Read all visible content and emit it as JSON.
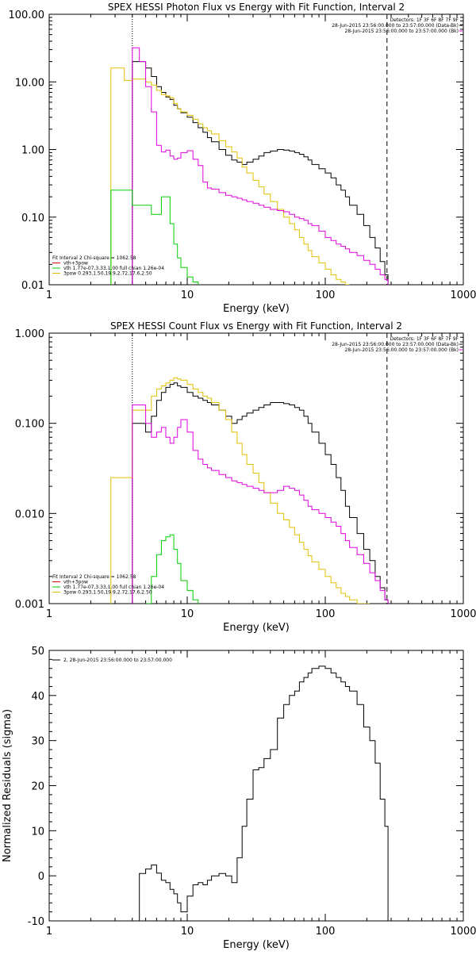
{
  "chart_data": [
    {
      "type": "line",
      "id": "photon",
      "title": "SPEX HESSI Photon Flux vs Energy with Fit Function, Interval 2",
      "xlabel": "Energy (keV)",
      "ylabel": "",
      "xscale": "log",
      "yscale": "log",
      "xlim": [
        1,
        1000
      ],
      "ylim": [
        0.01,
        100
      ],
      "x_ticks": [
        "1",
        "10",
        "100",
        "1000"
      ],
      "y_ticks": [
        "100.00",
        "10.00",
        "1.00",
        "0.10",
        "0.01"
      ],
      "vlines": [
        {
          "x": 4,
          "style": "dotted"
        },
        {
          "x": 280,
          "style": "dashed"
        }
      ],
      "header_right": [
        "Detectors: 1F 3F 6F 8F 7F 9F",
        "28-Jun-2015 23:56:00.000 to 23:57:00.000 (Data-Bk)",
        "28-Jun-2015 23:56:00.000 to 23:57:00.000 (Bk)"
      ],
      "legend": [
        {
          "text": "Fit Interval 2   Chi-square = 1062.58",
          "color": "#000000"
        },
        {
          "text": "vth+3pow",
          "color": "#e00000"
        },
        {
          "text": "vth 1.77e-07,3.33,1.00  full chian 1.26e-04",
          "color": "#00d000"
        },
        {
          "text": "3pow 0.293,1.50,19.9,2.72,17.6,2.50",
          "color": "#e0c000"
        }
      ],
      "series": [
        {
          "color": "#000000",
          "x": [
            4,
            4.5,
            5,
            5.5,
            6,
            6.5,
            7,
            7.5,
            8,
            8.5,
            9,
            10,
            11,
            12,
            13,
            14,
            15,
            17,
            19,
            21,
            23,
            25,
            27,
            30,
            33,
            36,
            40,
            45,
            50,
            55,
            60,
            65,
            70,
            75,
            80,
            90,
            100,
            110,
            120,
            130,
            140,
            150,
            170,
            190,
            210,
            230,
            250,
            270,
            285
          ],
          "y": [
            20,
            20,
            16,
            12,
            8.5,
            7,
            6,
            5.5,
            4.5,
            4,
            3.5,
            3.0,
            2.5,
            2.1,
            1.8,
            1.5,
            1.3,
            1.0,
            0.82,
            0.7,
            0.65,
            0.6,
            0.65,
            0.72,
            0.8,
            0.9,
            0.95,
            1.0,
            0.98,
            0.95,
            0.9,
            0.85,
            0.78,
            0.7,
            0.6,
            0.52,
            0.45,
            0.38,
            0.3,
            0.25,
            0.2,
            0.15,
            0.11,
            0.075,
            0.05,
            0.035,
            0.022,
            0.014,
            0.01
          ]
        },
        {
          "color": "#e0c000",
          "x": [
            2.8,
            3.5,
            4,
            4.5,
            5,
            5.5,
            6,
            6.5,
            7,
            7.5,
            8,
            8.5,
            9,
            10,
            11,
            12,
            13,
            14,
            15,
            17,
            19,
            21,
            23,
            25,
            27,
            30,
            33,
            36,
            40,
            45,
            50,
            55,
            60,
            65,
            70,
            75,
            80,
            90,
            100,
            110,
            120,
            130,
            140,
            150
          ],
          "y": [
            16,
            10.5,
            11,
            11,
            10,
            9,
            7.5,
            6.5,
            6.2,
            5.8,
            4.8,
            4,
            3.6,
            3.2,
            2.8,
            2.4,
            2.1,
            1.9,
            1.7,
            1.35,
            1.1,
            0.92,
            0.75,
            0.55,
            0.45,
            0.35,
            0.28,
            0.22,
            0.17,
            0.13,
            0.1,
            0.08,
            0.065,
            0.05,
            0.04,
            0.032,
            0.026,
            0.021,
            0.017,
            0.014,
            0.012,
            0.011,
            0.01,
            0.01
          ]
        },
        {
          "color": "#e000e0",
          "x": [
            4,
            4.5,
            5,
            5.5,
            6,
            6.5,
            7,
            7.5,
            8,
            8.5,
            9,
            10,
            11,
            12,
            13,
            14,
            15,
            17,
            19,
            21,
            23,
            25,
            27,
            30,
            33,
            36,
            40,
            45,
            50,
            55,
            60,
            65,
            70,
            75,
            80,
            90,
            100,
            110,
            120,
            130,
            140,
            150,
            170,
            190,
            210,
            230,
            250,
            270,
            285
          ],
          "y": [
            32,
            20,
            8.5,
            3.6,
            1.15,
            0.92,
            0.98,
            0.8,
            0.72,
            0.75,
            0.9,
            0.96,
            0.72,
            0.58,
            0.33,
            0.27,
            0.26,
            0.23,
            0.21,
            0.2,
            0.19,
            0.18,
            0.17,
            0.16,
            0.15,
            0.14,
            0.13,
            0.125,
            0.12,
            0.11,
            0.1,
            0.095,
            0.09,
            0.08,
            0.075,
            0.062,
            0.05,
            0.045,
            0.04,
            0.037,
            0.034,
            0.03,
            0.027,
            0.023,
            0.02,
            0.017,
            0.014,
            0.012,
            0.01
          ]
        },
        {
          "color": "#00d000",
          "x": [
            2.8,
            3.5,
            4,
            4.5,
            5,
            5.5,
            6,
            6.5,
            7,
            7.5,
            8,
            8.5,
            9,
            10,
            11,
            12
          ],
          "y": [
            0.25,
            0.25,
            0.15,
            0.15,
            0.15,
            0.11,
            0.11,
            0.2,
            0.2,
            0.08,
            0.04,
            0.025,
            0.018,
            0.013,
            0.011,
            0.01
          ]
        }
      ]
    },
    {
      "type": "line",
      "id": "count",
      "title": "SPEX HESSI Count Flux vs Energy with Fit Function, Interval 2",
      "xlabel": "Energy (keV)",
      "ylabel": "",
      "xscale": "log",
      "yscale": "log",
      "xlim": [
        1,
        1000
      ],
      "ylim": [
        0.001,
        1
      ],
      "x_ticks": [
        "1",
        "10",
        "100",
        "1000"
      ],
      "y_ticks": [
        "1.000",
        "0.100",
        "0.010",
        "0.001"
      ],
      "vlines": [
        {
          "x": 4,
          "style": "dotted"
        },
        {
          "x": 280,
          "style": "dashed"
        }
      ],
      "header_right": [
        "Detectors: 1F 3F 6F 8F 7F 9F",
        "28-Jun-2015 23:56:00.000 to 23:57:00.000 (Data-Bk)",
        "28-Jun-2015 23:56:00.000 to 23:57:00.000 (Bk)"
      ],
      "legend": [
        {
          "text": "Fit Interval 2   Chi-square = 1062.58",
          "color": "#000000"
        },
        {
          "text": "vth+3pow",
          "color": "#e00000"
        },
        {
          "text": "vth 1.77e-07,3.33,1.00  full chian 1.26e-04",
          "color": "#00d000"
        },
        {
          "text": "3pow 0.293,1.50,19.9,2.72,17.6,2.50",
          "color": "#e0c000"
        }
      ],
      "series": [
        {
          "color": "#000000",
          "x": [
            4,
            4.5,
            5,
            5.5,
            6,
            6.5,
            7,
            7.5,
            8,
            8.5,
            9,
            10,
            11,
            12,
            13,
            14,
            15,
            17,
            19,
            21,
            23,
            25,
            27,
            30,
            33,
            36,
            40,
            45,
            50,
            55,
            60,
            65,
            70,
            75,
            80,
            90,
            100,
            110,
            120,
            130,
            140,
            150,
            170,
            190,
            210,
            230,
            250,
            270,
            285
          ],
          "y": [
            0.1,
            0.1,
            0.08,
            0.12,
            0.18,
            0.22,
            0.25,
            0.27,
            0.28,
            0.26,
            0.25,
            0.22,
            0.2,
            0.19,
            0.18,
            0.17,
            0.16,
            0.14,
            0.12,
            0.1,
            0.11,
            0.12,
            0.13,
            0.14,
            0.15,
            0.16,
            0.17,
            0.17,
            0.165,
            0.16,
            0.15,
            0.14,
            0.12,
            0.1,
            0.08,
            0.06,
            0.045,
            0.035,
            0.025,
            0.018,
            0.012,
            0.009,
            0.006,
            0.004,
            0.003,
            0.002,
            0.0015,
            0.0011,
            0.001
          ]
        },
        {
          "color": "#e0c000",
          "x": [
            2.8,
            3.5,
            4,
            4.5,
            5,
            5.5,
            6,
            6.5,
            7,
            7.5,
            8,
            8.5,
            9,
            10,
            11,
            12,
            13,
            14,
            15,
            17,
            19,
            21,
            23,
            25,
            27,
            30,
            33,
            36,
            40,
            45,
            50,
            55,
            60,
            65,
            70,
            75,
            80,
            90,
            100,
            110,
            120,
            130,
            140,
            150,
            170,
            190,
            210
          ],
          "y": [
            0.025,
            0.025,
            0.14,
            0.14,
            0.14,
            0.2,
            0.24,
            0.26,
            0.28,
            0.3,
            0.32,
            0.31,
            0.3,
            0.27,
            0.24,
            0.22,
            0.2,
            0.19,
            0.17,
            0.14,
            0.11,
            0.08,
            0.06,
            0.045,
            0.035,
            0.028,
            0.022,
            0.017,
            0.013,
            0.01,
            0.0085,
            0.007,
            0.0058,
            0.0048,
            0.004,
            0.0034,
            0.0029,
            0.0024,
            0.002,
            0.0017,
            0.0015,
            0.0013,
            0.0012,
            0.0011,
            0.001,
            0.001,
            0.001
          ]
        },
        {
          "color": "#e000e0",
          "x": [
            4,
            4.5,
            5,
            5.5,
            6,
            6.5,
            7,
            7.5,
            8,
            8.5,
            9,
            10,
            11,
            12,
            13,
            14,
            15,
            17,
            19,
            21,
            23,
            25,
            27,
            30,
            33,
            36,
            40,
            45,
            50,
            55,
            60,
            65,
            70,
            75,
            80,
            90,
            100,
            110,
            120,
            130,
            140,
            150,
            170,
            190,
            210,
            230,
            250,
            270,
            285
          ],
          "y": [
            0.16,
            0.16,
            0.1,
            0.07,
            0.08,
            0.09,
            0.07,
            0.06,
            0.07,
            0.09,
            0.11,
            0.08,
            0.05,
            0.04,
            0.035,
            0.032,
            0.03,
            0.027,
            0.025,
            0.023,
            0.022,
            0.021,
            0.02,
            0.019,
            0.018,
            0.017,
            0.017,
            0.018,
            0.02,
            0.019,
            0.018,
            0.016,
            0.014,
            0.012,
            0.011,
            0.01,
            0.009,
            0.008,
            0.0072,
            0.006,
            0.005,
            0.0042,
            0.0035,
            0.0028,
            0.0022,
            0.0018,
            0.0014,
            0.0011,
            0.001
          ]
        },
        {
          "color": "#00d000",
          "x": [
            5,
            5.5,
            6,
            6.5,
            7,
            7.5,
            8,
            8.5,
            9,
            10,
            11,
            12
          ],
          "y": [
            0.001,
            0.002,
            0.0035,
            0.005,
            0.0055,
            0.0058,
            0.004,
            0.0028,
            0.0018,
            0.0014,
            0.0011,
            0.001
          ]
        }
      ]
    },
    {
      "type": "line",
      "id": "residuals",
      "title": "",
      "xlabel": "Energy (keV)",
      "ylabel": "Normalized Residuals (sigma)",
      "xscale": "log",
      "yscale": "linear",
      "xlim": [
        1,
        1000
      ],
      "ylim": [
        -10,
        50
      ],
      "x_ticks": [
        "1",
        "10",
        "100",
        "1000"
      ],
      "y_ticks": [
        "50",
        "40",
        "30",
        "20",
        "10",
        "0",
        "-10"
      ],
      "vlines": [],
      "header_right": [],
      "legend": [
        {
          "text": "2, 28-Jun-2015 23:56:00.000 to 23:57:00.000",
          "color": "#000000"
        }
      ],
      "series": [
        {
          "color": "#000000",
          "x": [
            4,
            4.5,
            5,
            5.5,
            6,
            6.5,
            7,
            7.5,
            8,
            8.5,
            9,
            10,
            11,
            12,
            13,
            14,
            15,
            17,
            19,
            21,
            23,
            25,
            27,
            30,
            33,
            36,
            40,
            45,
            50,
            55,
            60,
            65,
            70,
            75,
            80,
            90,
            100,
            110,
            120,
            130,
            140,
            150,
            170,
            190,
            210,
            230,
            250,
            270,
            285
          ],
          "y": [
            -10,
            0.5,
            1.5,
            2.4,
            0.6,
            -1,
            -1.5,
            -3,
            -4,
            -6,
            -8,
            -4.5,
            -2,
            -1.5,
            -2,
            -1,
            0,
            0.5,
            0,
            -1.5,
            4,
            11,
            17,
            23.5,
            24,
            26,
            28,
            35,
            38,
            40,
            41,
            43,
            44,
            45,
            46,
            46.5,
            46,
            45,
            44,
            43,
            42,
            41,
            38,
            33,
            30,
            25,
            17,
            11,
            -10
          ]
        }
      ]
    }
  ]
}
